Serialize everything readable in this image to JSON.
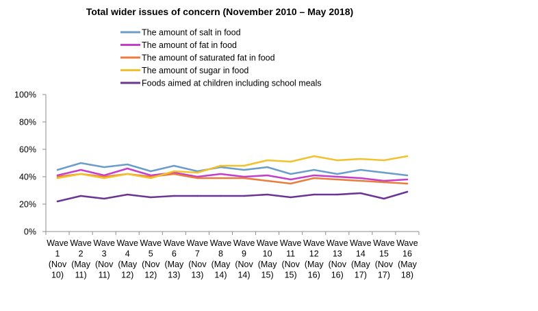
{
  "chart_data": {
    "type": "line",
    "title": "Total wider issues of concern (November 2010 – May 2018)",
    "xlabel": "",
    "ylabel": "",
    "ylim": [
      0,
      100
    ],
    "yticks": [
      "0%",
      "20%",
      "40%",
      "60%",
      "80%",
      "100%"
    ],
    "yticks_values": [
      0,
      20,
      40,
      60,
      80,
      100
    ],
    "grid": false,
    "legend_position": "top",
    "categories": [
      [
        "Wave",
        "1",
        "(Nov",
        "10)"
      ],
      [
        "Wave",
        "2",
        "(May",
        "11)"
      ],
      [
        "Wave",
        "3",
        "(Nov",
        "11)"
      ],
      [
        "Wave",
        "4",
        "(May",
        "12)"
      ],
      [
        "Wave",
        "5",
        "(Nov",
        "12)"
      ],
      [
        "Wave",
        "6",
        "(May",
        "13)"
      ],
      [
        "Wave",
        "7",
        "(Nov",
        "13)"
      ],
      [
        "Wave",
        "8",
        "(May",
        "14)"
      ],
      [
        "Wave",
        "9",
        "(Nov",
        "14)"
      ],
      [
        "Wave",
        "10",
        "(May",
        "15)"
      ],
      [
        "Wave",
        "11",
        "(Nov",
        "15)"
      ],
      [
        "Wave",
        "12",
        "(May",
        "16)"
      ],
      [
        "Wave",
        "13",
        "(Nov",
        "16)"
      ],
      [
        "Wave",
        "14",
        "(May",
        "17)"
      ],
      [
        "Wave",
        "15",
        "(Nov",
        "17)"
      ],
      [
        "Wave",
        "16",
        "(May",
        "18)"
      ]
    ],
    "series": [
      {
        "name": "The amount of salt in food",
        "color": "#6b9dc8",
        "values": [
          45,
          50,
          47,
          49,
          44,
          48,
          44,
          47,
          45,
          47,
          42,
          45,
          42,
          45,
          43,
          41
        ]
      },
      {
        "name": "The amount of fat in food",
        "color": "#c33fc9",
        "values": [
          41,
          45,
          41,
          46,
          41,
          43,
          40,
          42,
          40,
          41,
          38,
          41,
          40,
          39,
          37,
          38
        ]
      },
      {
        "name": "The amount of saturated fat in food",
        "color": "#ea7d3c",
        "values": [
          40,
          42,
          40,
          42,
          40,
          42,
          39,
          39,
          39,
          37,
          35,
          39,
          38,
          37,
          36,
          35
        ]
      },
      {
        "name": "The amount of sugar in food",
        "color": "#f2c12e",
        "values": [
          39,
          42,
          39,
          42,
          39,
          44,
          43,
          48,
          48,
          52,
          51,
          55,
          52,
          53,
          52,
          55
        ]
      },
      {
        "name": "Foods aimed at children including school meals",
        "color": "#6a3593",
        "values": [
          22,
          26,
          24,
          27,
          25,
          26,
          26,
          26,
          26,
          27,
          25,
          27,
          27,
          28,
          24,
          29
        ]
      }
    ]
  }
}
